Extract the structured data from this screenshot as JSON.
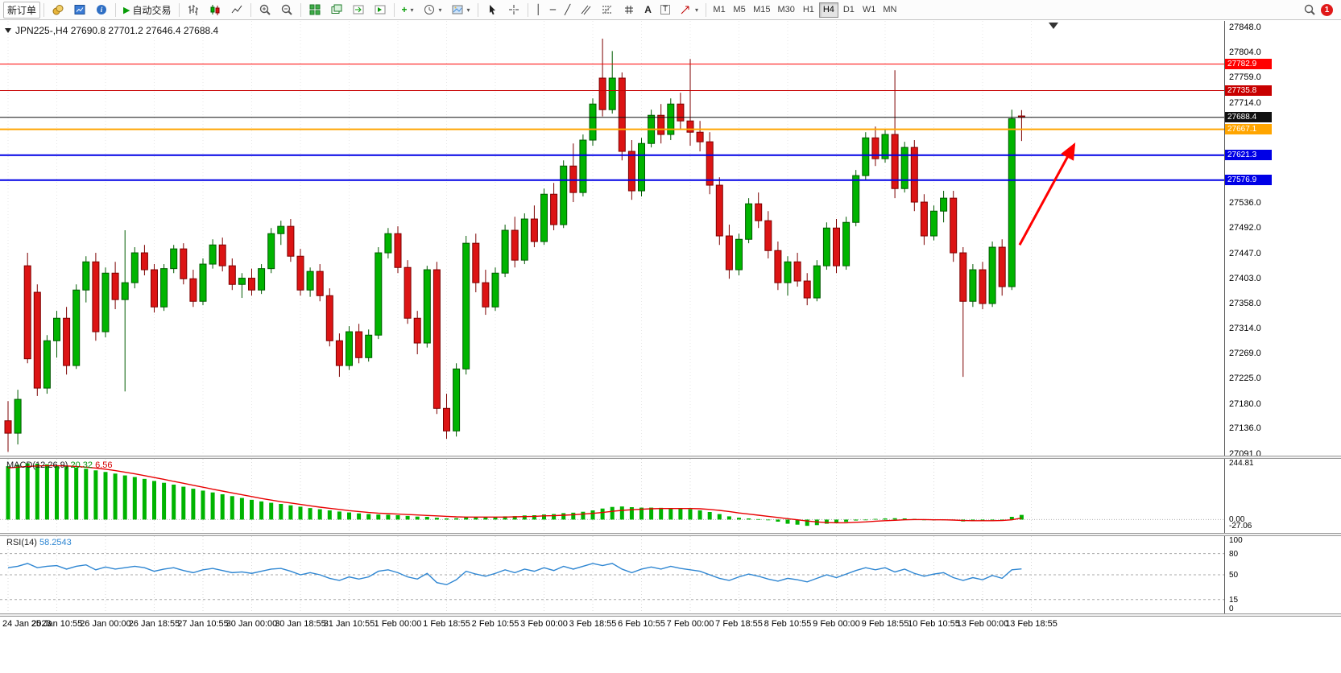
{
  "toolbar": {
    "new_order_label": "新订单",
    "autotrading_label": "自动交易",
    "timeframe_labels": [
      "M1",
      "M5",
      "M15",
      "M30",
      "H1",
      "H4",
      "D1",
      "W1",
      "MN"
    ],
    "active_timeframe": "H4",
    "notification_count": "1",
    "icons": {
      "one_click_trading": "▼",
      "autotrading_play": "▶",
      "dropdown_caret": "▾",
      "search": "magnifier-glyph",
      "notification": "red-circle-badge",
      "chart_shift_marker": "▼"
    }
  },
  "chart_data": [
    {
      "type": "candlestick",
      "title": "JPN225-,H4 27690.8 27701.2 27646.4 27688.4",
      "symbol": "JPN225-",
      "timeframe": "H4",
      "ohlc_current": {
        "open": 27690.8,
        "high": 27701.2,
        "low": 27646.4,
        "close": 27688.4
      },
      "ylim": [
        27091.0,
        27848.0
      ],
      "price_ticks": [
        "27848.0",
        "27804.0",
        "27759.0",
        "27714.0",
        "27536.0",
        "27492.0",
        "27447.0",
        "27403.0",
        "27358.0",
        "27314.0",
        "27269.0",
        "27225.0",
        "27180.0",
        "27136.0",
        "27091.0"
      ],
      "hlines": [
        {
          "price": 27782.9,
          "label": "27782.9",
          "color": "#FF0000",
          "width": 1
        },
        {
          "price": 27735.8,
          "label": "27735.8",
          "color": "#C80000",
          "width": 1
        },
        {
          "price": 27688.4,
          "label": "27688.4",
          "color": "#111111",
          "width": 1,
          "role": "current-price"
        },
        {
          "price": 27667.1,
          "label": "27667.1",
          "color": "#FFA500",
          "width": 2
        },
        {
          "price": 27621.3,
          "label": "27621.3",
          "color": "#0000E6",
          "width": 2
        },
        {
          "price": 27576.9,
          "label": "27576.9",
          "color": "#0000E6",
          "width": 2
        }
      ],
      "colors": {
        "up": "#00B400",
        "down": "#DC1414",
        "up_border": "#005A00",
        "down_border": "#7D0000"
      },
      "trend_arrow": {
        "color": "#FF0000",
        "from": {
          "index": 103.8,
          "price": 27462
        },
        "to": {
          "index": 109.4,
          "price": 27640
        }
      },
      "x_label_every": 5,
      "x_labels": [
        "24 Jan 2023",
        "25 Jan 10:55",
        "26 Jan 00:00",
        "26 Jan 18:55",
        "27 Jan 10:55",
        "30 Jan 00:00",
        "30 Jan 18:55",
        "31 Jan 10:55",
        "1 Feb 00:00",
        "1 Feb 18:55",
        "2 Feb 10:55",
        "3 Feb 00:00",
        "3 Feb 18:55",
        "6 Feb 10:55",
        "7 Feb 00:00",
        "7 Feb 18:55",
        "8 Feb 10:55",
        "9 Feb 00:00",
        "9 Feb 18:55",
        "10 Feb 10:55",
        "13 Feb 00:00",
        "13 Feb 18:55"
      ],
      "candles_ohlc": [
        [
          27150,
          27185,
          27095,
          27128
        ],
        [
          27128,
          27205,
          27108,
          27188
        ],
        [
          27425,
          27448,
          27252,
          27260
        ],
        [
          27378,
          27392,
          27194,
          27208
        ],
        [
          27208,
          27302,
          27198,
          27292
        ],
        [
          27292,
          27345,
          27262,
          27332
        ],
        [
          27332,
          27352,
          27232,
          27248
        ],
        [
          27248,
          27392,
          27242,
          27382
        ],
        [
          27382,
          27442,
          27360,
          27432
        ],
        [
          27432,
          27448,
          27292,
          27308
        ],
        [
          27308,
          27422,
          27298,
          27412
        ],
        [
          27412,
          27432,
          27348,
          27365
        ],
        [
          27365,
          27488,
          27202,
          27395
        ],
        [
          27395,
          27458,
          27385,
          27448
        ],
        [
          27448,
          27462,
          27408,
          27418
        ],
        [
          27418,
          27428,
          27342,
          27352
        ],
        [
          27352,
          27428,
          27345,
          27420
        ],
        [
          27420,
          27462,
          27412,
          27455
        ],
        [
          27455,
          27465,
          27392,
          27402
        ],
        [
          27402,
          27418,
          27352,
          27362
        ],
        [
          27362,
          27438,
          27355,
          27428
        ],
        [
          27428,
          27472,
          27420,
          27462
        ],
        [
          27462,
          27475,
          27415,
          27425
        ],
        [
          27425,
          27438,
          27382,
          27392
        ],
        [
          27392,
          27412,
          27368,
          27403
        ],
        [
          27403,
          27420,
          27372,
          27382
        ],
        [
          27382,
          27428,
          27375,
          27420
        ],
        [
          27420,
          27492,
          27412,
          27482
        ],
        [
          27482,
          27505,
          27462,
          27495
        ],
        [
          27495,
          27508,
          27432,
          27442
        ],
        [
          27442,
          27455,
          27372,
          27382
        ],
        [
          27382,
          27422,
          27370,
          27415
        ],
        [
          27415,
          27428,
          27362,
          27372
        ],
        [
          27372,
          27385,
          27282,
          27292
        ],
        [
          27292,
          27305,
          27228,
          27248
        ],
        [
          27248,
          27318,
          27240,
          27308
        ],
        [
          27308,
          27322,
          27252,
          27262
        ],
        [
          27262,
          27312,
          27255,
          27302
        ],
        [
          27302,
          27458,
          27295,
          27448
        ],
        [
          27448,
          27492,
          27438,
          27482
        ],
        [
          27482,
          27495,
          27412,
          27422
        ],
        [
          27422,
          27435,
          27322,
          27332
        ],
        [
          27332,
          27345,
          27268,
          27288
        ],
        [
          27288,
          27425,
          27280,
          27418
        ],
        [
          27418,
          27432,
          27162,
          27172
        ],
        [
          27172,
          27198,
          27118,
          27132
        ],
        [
          27132,
          27252,
          27122,
          27242
        ],
        [
          27242,
          27478,
          27232,
          27465
        ],
        [
          27465,
          27482,
          27378,
          27395
        ],
        [
          27395,
          27418,
          27338,
          27352
        ],
        [
          27352,
          27422,
          27345,
          27412
        ],
        [
          27412,
          27498,
          27405,
          27488
        ],
        [
          27488,
          27512,
          27422,
          27435
        ],
        [
          27435,
          27518,
          27428,
          27508
        ],
        [
          27508,
          27532,
          27458,
          27468
        ],
        [
          27468,
          27562,
          27462,
          27552
        ],
        [
          27552,
          27572,
          27488,
          27498
        ],
        [
          27498,
          27612,
          27492,
          27602
        ],
        [
          27602,
          27642,
          27538,
          27555
        ],
        [
          27555,
          27658,
          27548,
          27648
        ],
        [
          27648,
          27722,
          27638,
          27712
        ],
        [
          27758,
          27828,
          27690,
          27702
        ],
        [
          27702,
          27806,
          27695,
          27758
        ],
        [
          27758,
          27768,
          27612,
          27628
        ],
        [
          27628,
          27648,
          27542,
          27558
        ],
        [
          27558,
          27652,
          27548,
          27642
        ],
        [
          27642,
          27702,
          27635,
          27692
        ],
        [
          27692,
          27712,
          27642,
          27658
        ],
        [
          27658,
          27722,
          27648,
          27712
        ],
        [
          27712,
          27732,
          27668,
          27682
        ],
        [
          27682,
          27792,
          27638,
          27662
        ],
        [
          27662,
          27682,
          27628,
          27645
        ],
        [
          27645,
          27662,
          27552,
          27568
        ],
        [
          27568,
          27582,
          27462,
          27478
        ],
        [
          27478,
          27498,
          27402,
          27418
        ],
        [
          27418,
          27482,
          27408,
          27472
        ],
        [
          27472,
          27545,
          27465,
          27535
        ],
        [
          27535,
          27555,
          27492,
          27505
        ],
        [
          27505,
          27522,
          27438,
          27452
        ],
        [
          27452,
          27468,
          27382,
          27395
        ],
        [
          27395,
          27442,
          27372,
          27432
        ],
        [
          27432,
          27448,
          27388,
          27398
        ],
        [
          27398,
          27412,
          27355,
          27368
        ],
        [
          27368,
          27435,
          27362,
          27425
        ],
        [
          27425,
          27502,
          27418,
          27492
        ],
        [
          27492,
          27508,
          27412,
          27425
        ],
        [
          27425,
          27512,
          27418,
          27502
        ],
        [
          27502,
          27595,
          27495,
          27585
        ],
        [
          27585,
          27662,
          27578,
          27652
        ],
        [
          27652,
          27672,
          27602,
          27615
        ],
        [
          27615,
          27668,
          27608,
          27658
        ],
        [
          27658,
          27772,
          27545,
          27562
        ],
        [
          27562,
          27645,
          27555,
          27635
        ],
        [
          27635,
          27648,
          27522,
          27538
        ],
        [
          27538,
          27552,
          27462,
          27478
        ],
        [
          27478,
          27532,
          27470,
          27522
        ],
        [
          27522,
          27558,
          27502,
          27545
        ],
        [
          27545,
          27558,
          27432,
          27448
        ],
        [
          27448,
          27458,
          27228,
          27362
        ],
        [
          27362,
          27428,
          27352,
          27418
        ],
        [
          27418,
          27432,
          27348,
          27358
        ],
        [
          27358,
          27468,
          27352,
          27458
        ],
        [
          27458,
          27472,
          27372,
          27388
        ],
        [
          27388,
          27702,
          27382,
          27686
        ],
        [
          27690.8,
          27701.2,
          27646.4,
          27688.4
        ]
      ]
    },
    {
      "type": "bar",
      "name": "MACD(12,26,9)",
      "value_main": "20.32",
      "value_signal": "6.56",
      "ylim": [
        -30,
        250
      ],
      "axis_ticks": [
        {
          "value": 244.81,
          "label": "244.81"
        },
        {
          "value": 0,
          "label": "0.00"
        },
        {
          "value": -27.06,
          "label": "-27.06"
        }
      ],
      "colors": {
        "histogram": "#00B400",
        "signal": "#E80000"
      },
      "histogram": [
        232,
        238,
        244.81,
        243,
        240,
        236,
        231,
        226,
        221,
        214,
        207,
        200,
        192,
        185,
        177,
        168,
        160,
        152,
        143,
        134,
        126,
        118,
        110,
        102,
        94,
        86,
        79,
        73,
        68,
        62,
        56,
        50,
        45,
        40,
        35,
        31,
        27,
        24,
        22,
        21,
        19,
        16,
        13,
        12,
        8,
        5,
        6,
        10,
        11,
        10,
        11,
        14,
        15,
        18,
        19,
        22,
        24,
        28,
        30,
        34,
        40,
        48,
        55,
        57,
        54,
        52,
        52,
        51,
        50,
        48,
        45,
        40,
        33,
        24,
        14,
        8,
        5,
        2,
        -3,
        -9,
        -18,
        -22,
        -27.06,
        -24,
        -18,
        -15,
        -10,
        -4,
        0,
        3,
        5,
        6,
        5,
        3,
        -1,
        -2,
        -1,
        -3,
        -8,
        -7,
        -6,
        -3,
        -4,
        12,
        20.32
      ],
      "signal": [
        225,
        228,
        231,
        233,
        234,
        234,
        233,
        231,
        228,
        224,
        219,
        213,
        206,
        199,
        191,
        183,
        175,
        166,
        158,
        149,
        141,
        132,
        124,
        116,
        108,
        100,
        92,
        85,
        78,
        72,
        66,
        60,
        54,
        49,
        44,
        39,
        35,
        31,
        28,
        26,
        24,
        22,
        20,
        18,
        16,
        14,
        12,
        11,
        11,
        11,
        11,
        11,
        12,
        13,
        14,
        16,
        17,
        19,
        21,
        24,
        27,
        31,
        36,
        40,
        43,
        45,
        47,
        48,
        48,
        48,
        48,
        47,
        44,
        40,
        35,
        29,
        24,
        19,
        14,
        9,
        4,
        -1,
        -6,
        -10,
        -13,
        -14,
        -14,
        -12,
        -10,
        -7,
        -5,
        -3,
        -1,
        0,
        0,
        -1,
        -1,
        -2,
        -4,
        -5,
        -5,
        -5,
        -4,
        -1,
        6.56
      ]
    },
    {
      "type": "line",
      "name": "RSI(14)",
      "value": "58.2543",
      "ylim": [
        0,
        100
      ],
      "levels": [
        80,
        50,
        15
      ],
      "axis_ticks": [
        {
          "value": 100,
          "label": "100"
        },
        {
          "value": 80,
          "label": "80"
        },
        {
          "value": 50,
          "label": "50"
        },
        {
          "value": 15,
          "label": "15"
        },
        {
          "value": 0,
          "label": "0"
        }
      ],
      "color": "#2E86D2",
      "values": [
        60,
        62,
        66,
        60,
        62,
        63,
        58,
        62,
        64,
        57,
        61,
        58,
        60,
        62,
        60,
        55,
        58,
        60,
        56,
        53,
        57,
        59,
        56,
        53,
        54,
        52,
        55,
        58,
        59,
        55,
        50,
        53,
        50,
        45,
        42,
        47,
        44,
        47,
        55,
        57,
        53,
        47,
        44,
        52,
        39,
        36,
        43,
        55,
        51,
        48,
        52,
        57,
        53,
        58,
        55,
        60,
        56,
        62,
        58,
        62,
        66,
        63,
        66,
        58,
        53,
        58,
        61,
        58,
        62,
        59,
        57,
        55,
        50,
        45,
        42,
        47,
        51,
        48,
        44,
        41,
        45,
        43,
        40,
        45,
        50,
        46,
        51,
        56,
        60,
        57,
        60,
        54,
        58,
        52,
        48,
        51,
        53,
        46,
        42,
        46,
        43,
        49,
        45,
        57,
        58.25
      ]
    }
  ]
}
